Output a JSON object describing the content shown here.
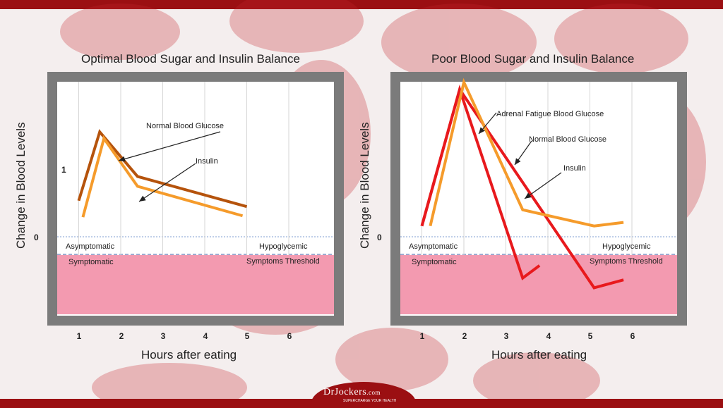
{
  "logo": {
    "name": "DrJockers",
    "suffix": ".com",
    "tagline": "SUPERCHARGE YOUR HEALTH"
  },
  "colors": {
    "brand": "#9b0f12",
    "normal_glucose": "#b5530c",
    "insulin": "#f59b2b",
    "adrenal": "#e8191d",
    "symptom_zone": "#f39ab0",
    "frame": "#7b7b7b"
  },
  "chart_data": [
    {
      "type": "line",
      "title": "Optimal Blood Sugar and Insulin Balance",
      "xlabel": "Hours after eating",
      "ylabel": "Change in Blood Levels",
      "x_ticks": [
        "1",
        "2",
        "3",
        "4",
        "5",
        "6"
      ],
      "y_ticks": [
        "1",
        "0"
      ],
      "zones": {
        "above": "Asymptomatic",
        "below": "Symptomatic",
        "threshold_label_1": "Hypoglycemic",
        "threshold_label_2": "Symptoms Threshold"
      },
      "series": [
        {
          "name": "Normal Blood Glucose",
          "x": [
            1.0,
            1.5,
            2.4,
            5.0
          ],
          "y": [
            0.55,
            1.6,
            0.92,
            0.46
          ]
        },
        {
          "name": "Insulin",
          "x": [
            1.1,
            1.6,
            2.4,
            4.9
          ],
          "y": [
            0.3,
            1.5,
            0.77,
            0.32
          ]
        }
      ]
    },
    {
      "type": "line",
      "title": "Poor Blood Sugar and Insulin Balance",
      "xlabel": "Hours after eating",
      "ylabel": "Change in Blood Levels",
      "x_ticks": [
        "1",
        "2",
        "3",
        "4",
        "5",
        "6"
      ],
      "y_ticks": [
        "0"
      ],
      "zones": {
        "above": "Asymptomatic",
        "below": "Symptomatic",
        "threshold_label_1": "Hypoglycemic",
        "threshold_label_2": "Symptoms Threshold"
      },
      "series": [
        {
          "name": "Adrenal Fatigue Blood Glucose",
          "x": [
            1.0,
            1.9,
            3.4,
            3.8
          ],
          "y": [
            0.3,
            4.1,
            -1.15,
            -0.8
          ]
        },
        {
          "name": "Normal Blood Glucose",
          "x": [
            1.0,
            1.9,
            5.1,
            5.8
          ],
          "y": [
            0.3,
            4.1,
            -1.42,
            -1.2
          ]
        },
        {
          "name": "Insulin",
          "x": [
            1.2,
            2.0,
            3.4,
            5.1,
            5.8
          ],
          "y": [
            0.3,
            4.3,
            0.75,
            0.3,
            0.4
          ]
        }
      ]
    }
  ]
}
